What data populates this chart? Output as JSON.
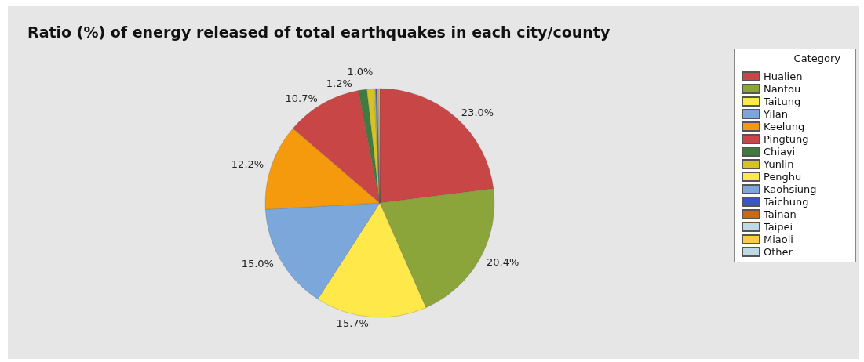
{
  "chart_data": {
    "type": "pie",
    "title": "Ratio (%) of energy released of total earthquakes in each city/county",
    "legend_title": "Category",
    "legend": "right",
    "categories": [
      "Hualien",
      "Nantou",
      "Taitung",
      "Yilan",
      "Keelung",
      "Pingtung",
      "Chiayi",
      "Yunlin",
      "Penghu",
      "Kaohsiung",
      "Taichung",
      "Tainan",
      "Taipei",
      "Miaoli",
      "Other"
    ],
    "values": [
      23.0,
      20.4,
      15.7,
      15.0,
      12.2,
      10.7,
      1.2,
      1.0,
      0.12,
      0.12,
      0.12,
      0.11,
      0.11,
      0.11,
      0.11
    ],
    "value_labels": [
      "23.0%",
      "20.4%",
      "15.7%",
      "15.0%",
      "12.2%",
      "10.7%",
      "1.2%",
      "1.0%",
      null,
      null,
      null,
      null,
      null,
      null,
      null
    ],
    "colors": [
      "#c84646",
      "#8ca53a",
      "#ffe94a",
      "#7ba7db",
      "#f59a0c",
      "#c84646",
      "#3f7a3f",
      "#d6c322",
      "#ffe94a",
      "#7ba7db",
      "#3b56c4",
      "#cc6a0a",
      "#bcdbe6",
      "#ffc94a",
      "#bcdbe6"
    ]
  }
}
